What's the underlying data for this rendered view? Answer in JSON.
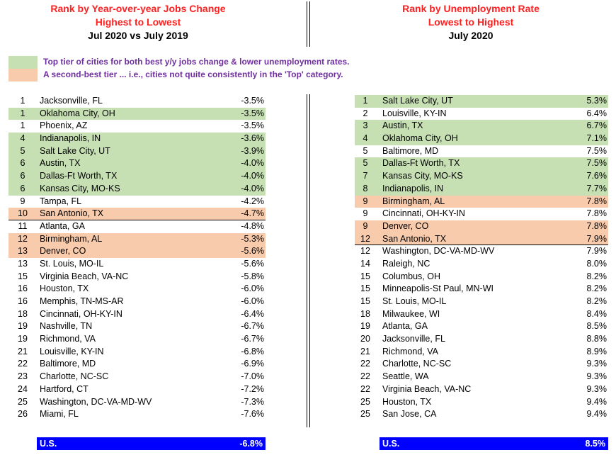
{
  "left_header": {
    "line1": "Rank by Year-over-year Jobs Change",
    "line2": "Highest to Lowest",
    "line3": "Jul 2020 vs July 2019"
  },
  "right_header": {
    "line1": "Rank by Unemployment Rate",
    "line2": "Lowest to Highest",
    "line3": "July 2020"
  },
  "legend": {
    "top_tier": "Top tier of cities for both best y/y jobs change & lower unemployment rates.",
    "second_tier": "A second-best tier ... i.e., cities not quite consistently in the 'Top' category.",
    "top_color": "#c6e0b4",
    "second_color": "#f8cbad"
  },
  "left_rows": [
    {
      "rank": "1",
      "city": "Jacksonville, FL",
      "value": "-3.5%",
      "tier": ""
    },
    {
      "rank": "1",
      "city": "Oklahoma City, OH",
      "value": "-3.5%",
      "tier": "green"
    },
    {
      "rank": "1",
      "city": "Phoenix, AZ",
      "value": "-3.5%",
      "tier": ""
    },
    {
      "rank": "4",
      "city": "Indianapolis, IN",
      "value": "-3.6%",
      "tier": "green"
    },
    {
      "rank": "5",
      "city": "Salt Lake City, UT",
      "value": "-3.9%",
      "tier": "green"
    },
    {
      "rank": "6",
      "city": "Austin, TX",
      "value": "-4.0%",
      "tier": "green"
    },
    {
      "rank": "6",
      "city": "Dallas-Ft Worth, TX",
      "value": "-4.0%",
      "tier": "green"
    },
    {
      "rank": "6",
      "city": "Kansas City, MO-KS",
      "value": "-4.0%",
      "tier": "green"
    },
    {
      "rank": "9",
      "city": "Tampa, FL",
      "value": "-4.2%",
      "tier": ""
    },
    {
      "rank": "10",
      "city": "San Antonio, TX",
      "value": "-4.7%",
      "tier": "orange",
      "underline": true
    },
    {
      "rank": "11",
      "city": "Atlanta, GA",
      "value": "-4.8%",
      "tier": ""
    },
    {
      "rank": "12",
      "city": "Birmingham, AL",
      "value": "-5.3%",
      "tier": "orange"
    },
    {
      "rank": "13",
      "city": "Denver, CO",
      "value": "-5.6%",
      "tier": "orange"
    },
    {
      "rank": "13",
      "city": "St. Louis, MO-IL",
      "value": "-5.6%",
      "tier": ""
    },
    {
      "rank": "15",
      "city": "Virginia Beach, VA-NC",
      "value": "-5.8%",
      "tier": ""
    },
    {
      "rank": "16",
      "city": "Houston, TX",
      "value": "-6.0%",
      "tier": ""
    },
    {
      "rank": "16",
      "city": "Memphis, TN-MS-AR",
      "value": "-6.0%",
      "tier": ""
    },
    {
      "rank": "18",
      "city": "Cincinnati, OH-KY-IN",
      "value": "-6.4%",
      "tier": ""
    },
    {
      "rank": "19",
      "city": "Nashville, TN",
      "value": "-6.7%",
      "tier": ""
    },
    {
      "rank": "19",
      "city": "Richmond, VA",
      "value": "-6.7%",
      "tier": ""
    },
    {
      "rank": "21",
      "city": "Louisville, KY-IN",
      "value": "-6.8%",
      "tier": ""
    },
    {
      "rank": "22",
      "city": "Baltimore, MD",
      "value": "-6.9%",
      "tier": ""
    },
    {
      "rank": "23",
      "city": "Charlotte, NC-SC",
      "value": "-7.0%",
      "tier": ""
    },
    {
      "rank": "24",
      "city": "Hartford, CT",
      "value": "-7.2%",
      "tier": ""
    },
    {
      "rank": "25",
      "city": "Washington, DC-VA-MD-WV",
      "value": "-7.3%",
      "tier": ""
    },
    {
      "rank": "26",
      "city": "Miami, FL",
      "value": "-7.6%",
      "tier": ""
    }
  ],
  "right_rows": [
    {
      "rank": "1",
      "city": "Salt Lake City, UT",
      "value": "5.3%",
      "tier": "green"
    },
    {
      "rank": "2",
      "city": "Louisville, KY-IN",
      "value": "6.4%",
      "tier": ""
    },
    {
      "rank": "3",
      "city": "Austin, TX",
      "value": "6.7%",
      "tier": "green"
    },
    {
      "rank": "4",
      "city": "Oklahoma City, OH",
      "value": "7.1%",
      "tier": "green"
    },
    {
      "rank": "5",
      "city": "Baltimore, MD",
      "value": "7.5%",
      "tier": ""
    },
    {
      "rank": "5",
      "city": "Dallas-Ft Worth, TX",
      "value": "7.5%",
      "tier": "green"
    },
    {
      "rank": "7",
      "city": "Kansas City, MO-KS",
      "value": "7.6%",
      "tier": "green"
    },
    {
      "rank": "8",
      "city": "Indianapolis, IN",
      "value": "7.7%",
      "tier": "green"
    },
    {
      "rank": "9",
      "city": "Birmingham, AL",
      "value": "7.8%",
      "tier": "orange"
    },
    {
      "rank": "9",
      "city": "Cincinnati, OH-KY-IN",
      "value": "7.8%",
      "tier": ""
    },
    {
      "rank": "9",
      "city": "Denver, CO",
      "value": "7.8%",
      "tier": "orange"
    },
    {
      "rank": "12",
      "city": "San Antonio, TX",
      "value": "7.9%",
      "tier": "orange",
      "underline": true
    },
    {
      "rank": "12",
      "city": "Washington, DC-VA-MD-WV",
      "value": "7.9%",
      "tier": ""
    },
    {
      "rank": "14",
      "city": "Raleigh, NC",
      "value": "8.0%",
      "tier": ""
    },
    {
      "rank": "15",
      "city": "Columbus, OH",
      "value": "8.2%",
      "tier": ""
    },
    {
      "rank": "15",
      "city": "Minneapolis-St Paul, MN-WI",
      "value": "8.2%",
      "tier": ""
    },
    {
      "rank": "15",
      "city": "St. Louis, MO-IL",
      "value": "8.2%",
      "tier": ""
    },
    {
      "rank": "18",
      "city": "Milwaukee, WI",
      "value": "8.4%",
      "tier": ""
    },
    {
      "rank": "19",
      "city": "Atlanta, GA",
      "value": "8.5%",
      "tier": ""
    },
    {
      "rank": "20",
      "city": "Jacksonville, FL",
      "value": "8.8%",
      "tier": ""
    },
    {
      "rank": "21",
      "city": "Richmond, VA",
      "value": "8.9%",
      "tier": ""
    },
    {
      "rank": "22",
      "city": "Charlotte, NC-SC",
      "value": "9.3%",
      "tier": ""
    },
    {
      "rank": "22",
      "city": "Seattle, WA",
      "value": "9.3%",
      "tier": ""
    },
    {
      "rank": "22",
      "city": "Virginia Beach, VA-NC",
      "value": "9.3%",
      "tier": ""
    },
    {
      "rank": "25",
      "city": "Houston, TX",
      "value": "9.4%",
      "tier": ""
    },
    {
      "rank": "25",
      "city": "San Jose, CA",
      "value": "9.4%",
      "tier": ""
    }
  ],
  "left_total": {
    "label": "U.S.",
    "value": "-6.8%"
  },
  "right_total": {
    "label": "U.S.",
    "value": "8.5%"
  },
  "total_color": "#0000ff"
}
